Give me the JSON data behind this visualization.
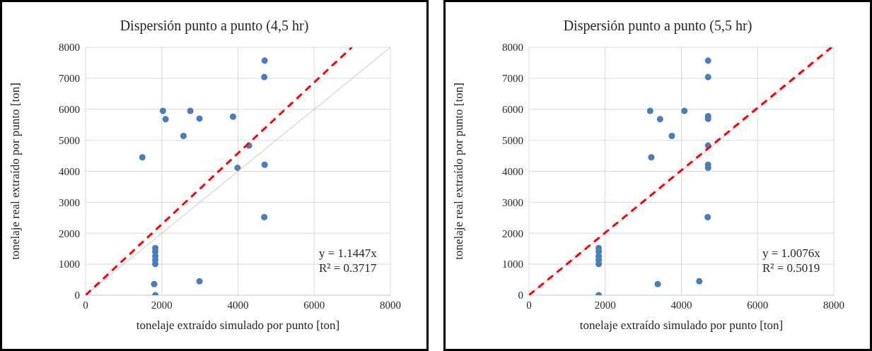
{
  "chart_data": [
    {
      "type": "scatter",
      "title": "Dispersión  punto a punto (4,5 hr)",
      "xlabel": "tonelaje extraído simulado por punto [ton]",
      "ylabel": "tonelaje real extraído por punto [ton]",
      "xlim": [
        0,
        8000
      ],
      "xticks": [
        0,
        2000,
        4000,
        6000,
        8000
      ],
      "ylim": [
        0,
        8000
      ],
      "yticks": [
        0,
        1000,
        2000,
        3000,
        4000,
        5000,
        6000,
        7000,
        8000
      ],
      "grid": true,
      "annotations": [
        "y = 1.1447x",
        "R² = 0.3717"
      ],
      "series": [
        {
          "color": "#4a7ebb",
          "marker": "circle",
          "x": [
            4700,
            4690,
            2030,
            2750,
            2100,
            2990,
            3870,
            2570,
            1490,
            4290,
            3990,
            4700,
            4690,
            1830,
            1830,
            1830,
            1830,
            1830,
            1800,
            1830,
            2990
          ],
          "values": [
            7570,
            7040,
            5950,
            5950,
            5680,
            5700,
            5760,
            5140,
            4450,
            4830,
            4110,
            4210,
            2520,
            1520,
            1410,
            1260,
            1140,
            1010,
            360,
            0,
            450
          ]
        },
        {
          "type": "line",
          "color": "#bfbfbf",
          "marker": "none",
          "line_style": "solid",
          "x": [
            0,
            8000
          ],
          "values": [
            0,
            8000
          ]
        },
        {
          "type": "line",
          "color": "#ff0000",
          "marker": "none",
          "line_style": "dashed",
          "x": [
            0,
            6990
          ],
          "values": [
            0,
            8000
          ]
        }
      ]
    },
    {
      "type": "scatter",
      "title": "Dispersión  punto a punto (5,5 hr)",
      "xlabel": "tonelaje extraído simulado por punto [ton]",
      "ylabel": "tonelaje real extraído por punto [ton]",
      "xlim": [
        0,
        8000
      ],
      "xticks": [
        0,
        2000,
        4000,
        6000,
        8000
      ],
      "ylim": [
        0,
        8000
      ],
      "yticks": [
        0,
        1000,
        2000,
        3000,
        4000,
        5000,
        6000,
        7000,
        8000
      ],
      "grid": true,
      "annotations": [
        "y = 1.0076x",
        "R² = 0.5019"
      ],
      "series": [
        {
          "color": "#4a7ebb",
          "marker": "circle",
          "x": [
            4700,
            4700,
            3180,
            4080,
            3440,
            4700,
            4700,
            3750,
            3210,
            4700,
            4700,
            4700,
            4690,
            1830,
            1830,
            1830,
            1830,
            1830,
            3380,
            4470,
            1830
          ],
          "values": [
            7570,
            7040,
            5950,
            5950,
            5680,
            5780,
            5690,
            5140,
            4450,
            4830,
            4210,
            4110,
            2520,
            1520,
            1410,
            1260,
            1140,
            1010,
            360,
            450,
            0
          ]
        },
        {
          "type": "line",
          "color": "#bfbfbf",
          "marker": "none",
          "line_style": "solid",
          "x": [
            0,
            8000
          ],
          "values": [
            0,
            8000
          ]
        },
        {
          "type": "line",
          "color": "#ff0000",
          "marker": "none",
          "line_style": "dashed",
          "x": [
            0,
            7940
          ],
          "values": [
            0,
            8000
          ]
        }
      ]
    }
  ]
}
